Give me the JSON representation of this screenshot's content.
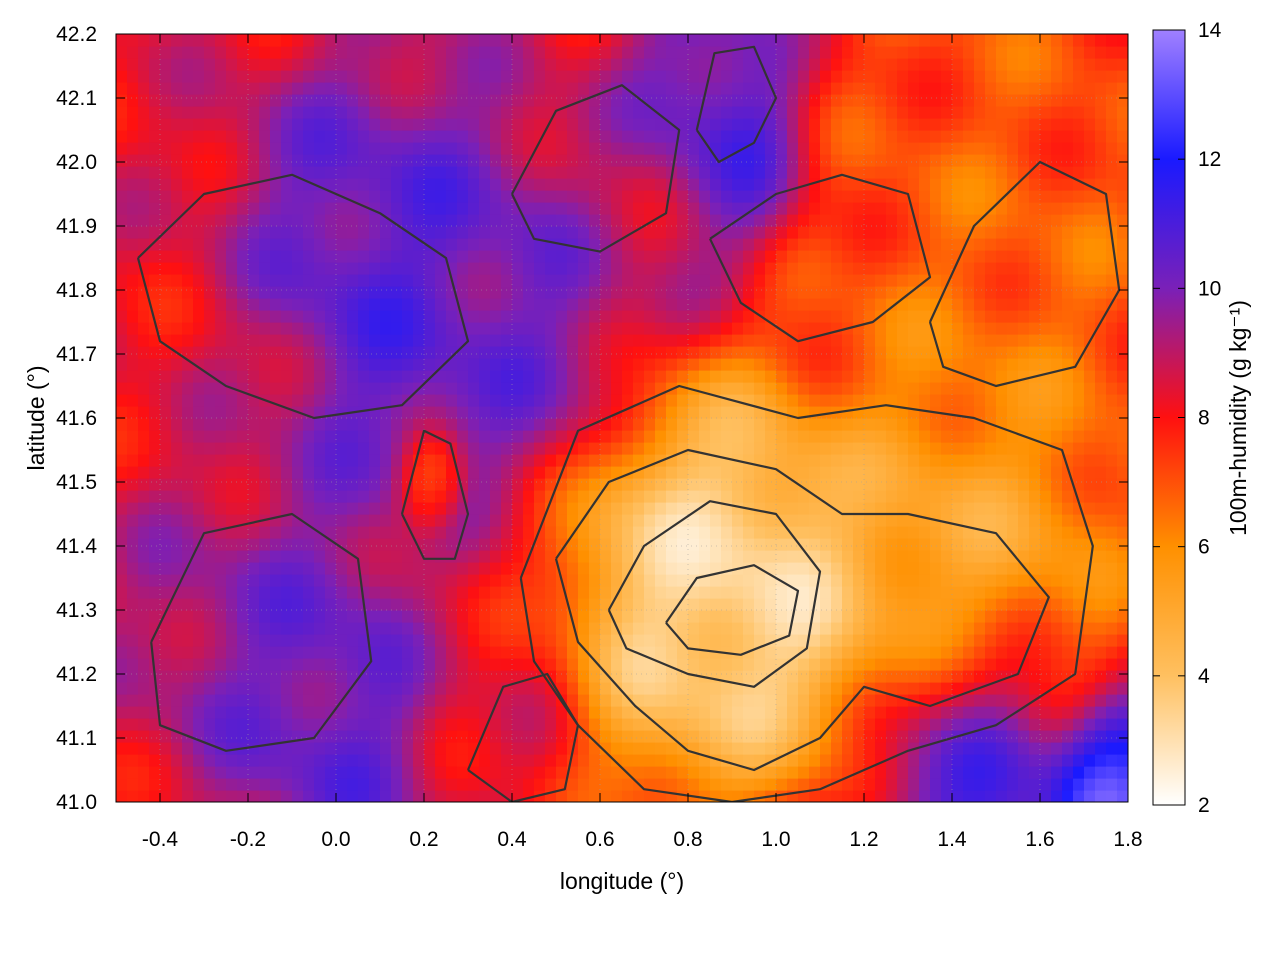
{
  "chart_data": {
    "type": "heatmap",
    "title": "",
    "xlabel": "longitude (°)",
    "ylabel": "latitude (°)",
    "colorbar_label": "100m-humidity (g kg⁻¹)",
    "xlim": [
      -0.5,
      1.8
    ],
    "ylim": [
      41.0,
      42.2
    ],
    "xticks": [
      -0.4,
      -0.2,
      0.0,
      0.2,
      0.4,
      0.6,
      0.8,
      1.0,
      1.2,
      1.4,
      1.6,
      1.8
    ],
    "xtick_labels": [
      "-0.4",
      "-0.2",
      "0.0",
      "0.2",
      "0.4",
      "0.6",
      "0.8",
      "1.0",
      "1.2",
      "1.4",
      "1.6",
      "1.8"
    ],
    "yticks": [
      41.0,
      41.1,
      41.2,
      41.3,
      41.4,
      41.5,
      41.6,
      41.7,
      41.8,
      41.9,
      42.0,
      42.1,
      42.2
    ],
    "ytick_labels": [
      "41.0",
      "41.1",
      "41.2",
      "41.3",
      "41.4",
      "41.5",
      "41.6",
      "41.7",
      "41.8",
      "41.9",
      "42.0",
      "42.1",
      "42.2"
    ],
    "colorbar_range": [
      2,
      14
    ],
    "colorbar_ticks": [
      2,
      4,
      6,
      8,
      10,
      12,
      14
    ],
    "colorbar_tick_labels": [
      "2",
      "4",
      "6",
      "8",
      "10",
      "12",
      "14"
    ],
    "colormap": [
      {
        "value": 2,
        "color": "#ffffff"
      },
      {
        "value": 4,
        "color": "#ffc060"
      },
      {
        "value": 6,
        "color": "#ff9000"
      },
      {
        "value": 8,
        "color": "#ff1010"
      },
      {
        "value": 10,
        "color": "#7a20b8"
      },
      {
        "value": 12,
        "color": "#1a1aff"
      },
      {
        "value": 14,
        "color": "#a080ff"
      }
    ],
    "grid": true,
    "contour_color": "#333333",
    "field_features": [
      {
        "lon": 0.8,
        "lat": 41.35,
        "value": 2.4,
        "spread": 0.28
      },
      {
        "lon": 1.0,
        "lat": 41.32,
        "value": 2.6,
        "spread": 0.2
      },
      {
        "lon": 1.4,
        "lat": 41.35,
        "value": 3.6,
        "spread": 0.3
      },
      {
        "lon": 1.5,
        "lat": 41.7,
        "value": 6.2,
        "spread": 0.35
      },
      {
        "lon": 1.5,
        "lat": 42.05,
        "value": 6.8,
        "spread": 0.35
      },
      {
        "lon": 0.22,
        "lat": 41.5,
        "value": 6.0,
        "spread": 0.07
      },
      {
        "lon": 1.45,
        "lat": 41.08,
        "value": 12.8,
        "spread": 0.22
      },
      {
        "lon": 1.75,
        "lat": 41.02,
        "value": 13.8,
        "spread": 0.12
      },
      {
        "lon": 0.1,
        "lat": 41.8,
        "value": 11.2,
        "spread": 0.3
      },
      {
        "lon": 0.85,
        "lat": 42.05,
        "value": 11.8,
        "spread": 0.18
      },
      {
        "lon": -0.2,
        "lat": 41.35,
        "value": 10.2,
        "spread": 0.25
      },
      {
        "lon": 0.0,
        "lat": 41.15,
        "value": 11.0,
        "spread": 0.22
      },
      {
        "lon": -0.3,
        "lat": 41.6,
        "value": 8.2,
        "spread": 0.25
      },
      {
        "lon": 0.45,
        "lat": 41.75,
        "value": 10.5,
        "spread": 0.25
      },
      {
        "lon": 0.7,
        "lat": 41.95,
        "value": 8.5,
        "spread": 0.2
      },
      {
        "lon": 0.35,
        "lat": 41.2,
        "value": 8.4,
        "spread": 0.2
      }
    ],
    "contours": [
      {
        "level": 3,
        "points": [
          [
            0.62,
            41.3
          ],
          [
            0.7,
            41.4
          ],
          [
            0.85,
            41.47
          ],
          [
            1.0,
            41.45
          ],
          [
            1.1,
            41.36
          ],
          [
            1.07,
            41.24
          ],
          [
            0.95,
            41.18
          ],
          [
            0.8,
            41.2
          ],
          [
            0.66,
            41.24
          ],
          [
            0.62,
            41.3
          ]
        ]
      },
      {
        "level": 2.5,
        "points": [
          [
            0.75,
            41.28
          ],
          [
            0.82,
            41.35
          ],
          [
            0.95,
            41.37
          ],
          [
            1.05,
            41.33
          ],
          [
            1.03,
            41.26
          ],
          [
            0.92,
            41.23
          ],
          [
            0.8,
            41.24
          ],
          [
            0.75,
            41.28
          ]
        ]
      },
      {
        "level": 5,
        "points": [
          [
            0.5,
            41.38
          ],
          [
            0.62,
            41.5
          ],
          [
            0.8,
            41.55
          ],
          [
            1.0,
            41.52
          ],
          [
            1.15,
            41.45
          ],
          [
            1.3,
            41.45
          ],
          [
            1.5,
            41.42
          ],
          [
            1.62,
            41.32
          ],
          [
            1.55,
            41.2
          ],
          [
            1.35,
            41.15
          ],
          [
            1.2,
            41.18
          ],
          [
            1.1,
            41.1
          ],
          [
            0.95,
            41.05
          ],
          [
            0.8,
            41.08
          ],
          [
            0.68,
            41.15
          ],
          [
            0.55,
            41.25
          ],
          [
            0.5,
            41.38
          ]
        ]
      },
      {
        "level": 7,
        "points": [
          [
            0.42,
            41.35
          ],
          [
            0.55,
            41.58
          ],
          [
            0.78,
            41.65
          ],
          [
            1.05,
            41.6
          ],
          [
            1.25,
            41.62
          ],
          [
            1.45,
            41.6
          ],
          [
            1.65,
            41.55
          ],
          [
            1.72,
            41.4
          ],
          [
            1.68,
            41.2
          ],
          [
            1.5,
            41.12
          ],
          [
            1.3,
            41.08
          ],
          [
            1.1,
            41.02
          ],
          [
            0.9,
            41.0
          ],
          [
            0.7,
            41.02
          ],
          [
            0.55,
            41.12
          ],
          [
            0.45,
            41.22
          ],
          [
            0.42,
            41.35
          ]
        ]
      },
      {
        "level": 8,
        "points": [
          [
            0.85,
            41.88
          ],
          [
            1.0,
            41.95
          ],
          [
            1.15,
            41.98
          ],
          [
            1.3,
            41.95
          ],
          [
            1.35,
            41.82
          ],
          [
            1.22,
            41.75
          ],
          [
            1.05,
            41.72
          ],
          [
            0.92,
            41.78
          ],
          [
            0.85,
            41.88
          ]
        ]
      },
      {
        "level": 9,
        "points": [
          [
            -0.45,
            41.85
          ],
          [
            -0.3,
            41.95
          ],
          [
            -0.1,
            41.98
          ],
          [
            0.1,
            41.92
          ],
          [
            0.25,
            41.85
          ],
          [
            0.3,
            41.72
          ],
          [
            0.15,
            41.62
          ],
          [
            -0.05,
            41.6
          ],
          [
            -0.25,
            41.65
          ],
          [
            -0.4,
            41.72
          ],
          [
            -0.45,
            41.85
          ]
        ]
      },
      {
        "level": 9,
        "points": [
          [
            0.4,
            41.95
          ],
          [
            0.5,
            42.08
          ],
          [
            0.65,
            42.12
          ],
          [
            0.78,
            42.05
          ],
          [
            0.75,
            41.92
          ],
          [
            0.6,
            41.86
          ],
          [
            0.45,
            41.88
          ],
          [
            0.4,
            41.95
          ]
        ]
      },
      {
        "level": 10,
        "points": [
          [
            0.82,
            42.05
          ],
          [
            0.86,
            42.17
          ],
          [
            0.95,
            42.18
          ],
          [
            1.0,
            42.1
          ],
          [
            0.95,
            42.03
          ],
          [
            0.87,
            42.0
          ],
          [
            0.82,
            42.05
          ]
        ]
      },
      {
        "level": 9,
        "points": [
          [
            -0.42,
            41.25
          ],
          [
            -0.3,
            41.42
          ],
          [
            -0.1,
            41.45
          ],
          [
            0.05,
            41.38
          ],
          [
            0.08,
            41.22
          ],
          [
            -0.05,
            41.1
          ],
          [
            -0.25,
            41.08
          ],
          [
            -0.4,
            41.12
          ],
          [
            -0.42,
            41.25
          ]
        ]
      },
      {
        "level": 8,
        "points": [
          [
            0.15,
            41.45
          ],
          [
            0.2,
            41.58
          ],
          [
            0.26,
            41.56
          ],
          [
            0.3,
            41.45
          ],
          [
            0.27,
            41.38
          ],
          [
            0.2,
            41.38
          ],
          [
            0.15,
            41.45
          ]
        ]
      },
      {
        "level": 7,
        "points": [
          [
            1.35,
            41.75
          ],
          [
            1.45,
            41.9
          ],
          [
            1.6,
            42.0
          ],
          [
            1.75,
            41.95
          ],
          [
            1.78,
            41.8
          ],
          [
            1.68,
            41.68
          ],
          [
            1.5,
            41.65
          ],
          [
            1.38,
            41.68
          ],
          [
            1.35,
            41.75
          ]
        ]
      },
      {
        "level": 9,
        "points": [
          [
            0.3,
            41.05
          ],
          [
            0.38,
            41.18
          ],
          [
            0.48,
            41.2
          ],
          [
            0.55,
            41.12
          ],
          [
            0.52,
            41.02
          ],
          [
            0.4,
            41.0
          ],
          [
            0.3,
            41.05
          ]
        ]
      }
    ]
  }
}
